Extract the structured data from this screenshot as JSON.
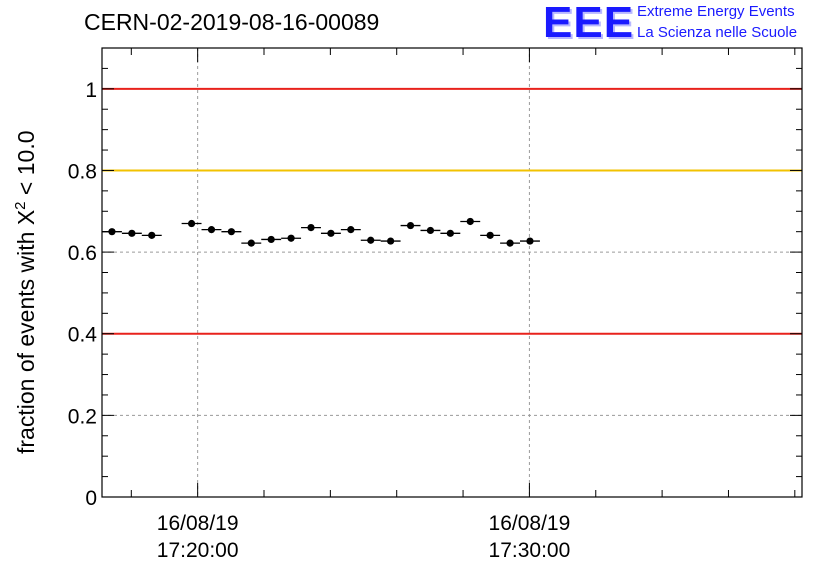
{
  "header": {
    "title": "CERN-02-2019-08-16-00089"
  },
  "logo": {
    "mark": "EEE",
    "line1": "Extreme Energy Events",
    "line2": "La Scienza nelle Scuole",
    "color": "#1a1aff"
  },
  "chart_data": {
    "type": "scatter",
    "ylabel_prefix": "fraction of events with ",
    "ylabel_symbol": "X",
    "ylabel_sup": "2",
    "ylabel_suffix": " < 10.0",
    "ylim": [
      0,
      1.1
    ],
    "yticks": [
      {
        "value": 0,
        "label": "0"
      },
      {
        "value": 0.2,
        "label": "0.2"
      },
      {
        "value": 0.4,
        "label": "0.4"
      },
      {
        "value": 0.6,
        "label": "0.6"
      },
      {
        "value": 0.8,
        "label": "0.8"
      },
      {
        "value": 1,
        "label": "1"
      }
    ],
    "xlim": [
      "16/08/19 17:17:07",
      "16/08/19 17:38:13"
    ],
    "xticks": [
      {
        "value": "16/08/19 17:20:00",
        "line1": "16/08/19",
        "line2": "17:20:00"
      },
      {
        "value": "16/08/19 17:30:00",
        "line1": "16/08/19",
        "line2": "17:30:00"
      }
    ],
    "reference_lines": [
      {
        "y": 1.0,
        "color": "#e8221c"
      },
      {
        "y": 0.8,
        "color": "#f2c200"
      },
      {
        "y": 0.4,
        "color": "#e8221c"
      }
    ],
    "grid": true,
    "bin_width_s": 36,
    "points": [
      {
        "t": "16/08/19 17:17:25",
        "y": 0.65
      },
      {
        "t": "16/08/19 17:18:01",
        "y": 0.646
      },
      {
        "t": "16/08/19 17:18:37",
        "y": 0.641
      },
      {
        "t": "16/08/19 17:19:49",
        "y": 0.67
      },
      {
        "t": "16/08/19 17:20:25",
        "y": 0.655
      },
      {
        "t": "16/08/19 17:21:01",
        "y": 0.65
      },
      {
        "t": "16/08/19 17:21:37",
        "y": 0.622
      },
      {
        "t": "16/08/19 17:22:13",
        "y": 0.631
      },
      {
        "t": "16/08/19 17:22:49",
        "y": 0.634
      },
      {
        "t": "16/08/19 17:23:25",
        "y": 0.66
      },
      {
        "t": "16/08/19 17:24:01",
        "y": 0.646
      },
      {
        "t": "16/08/19 17:24:37",
        "y": 0.655
      },
      {
        "t": "16/08/19 17:25:13",
        "y": 0.629
      },
      {
        "t": "16/08/19 17:25:49",
        "y": 0.627
      },
      {
        "t": "16/08/19 17:26:25",
        "y": 0.665
      },
      {
        "t": "16/08/19 17:27:01",
        "y": 0.653
      },
      {
        "t": "16/08/19 17:27:37",
        "y": 0.646
      },
      {
        "t": "16/08/19 17:28:13",
        "y": 0.675
      },
      {
        "t": "16/08/19 17:28:49",
        "y": 0.641
      },
      {
        "t": "16/08/19 17:29:25",
        "y": 0.622
      },
      {
        "t": "16/08/19 17:30:01",
        "y": 0.627
      }
    ]
  }
}
